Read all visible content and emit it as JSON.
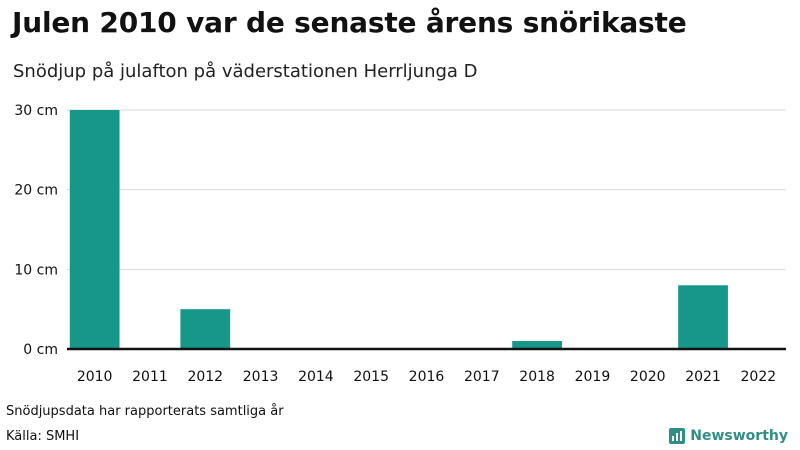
{
  "header": {
    "title": "Julen 2010 var de senaste årens snörikaste",
    "subtitle": "Snödjup på julafton på väderstationen Herrljunga D"
  },
  "chart_data": {
    "type": "bar",
    "categories": [
      "2010",
      "2011",
      "2012",
      "2013",
      "2014",
      "2015",
      "2016",
      "2017",
      "2018",
      "2019",
      "2020",
      "2021",
      "2022"
    ],
    "values": [
      30,
      0,
      5,
      0,
      0,
      0,
      0,
      0,
      1,
      0,
      0,
      8,
      0
    ],
    "ylim": [
      0,
      30
    ],
    "yticks": [
      0,
      10,
      20,
      30
    ],
    "ytick_labels": [
      "0 cm",
      "10 cm",
      "20 cm",
      "30 cm"
    ],
    "grid": true,
    "bar_color": "#17978a"
  },
  "footer": {
    "note": "Snödjupsdata har rapporterats samtliga år",
    "source": "Källa: SMHI",
    "brand": "Newsworthy",
    "brand_icon": "bar-chart-logo-icon"
  }
}
